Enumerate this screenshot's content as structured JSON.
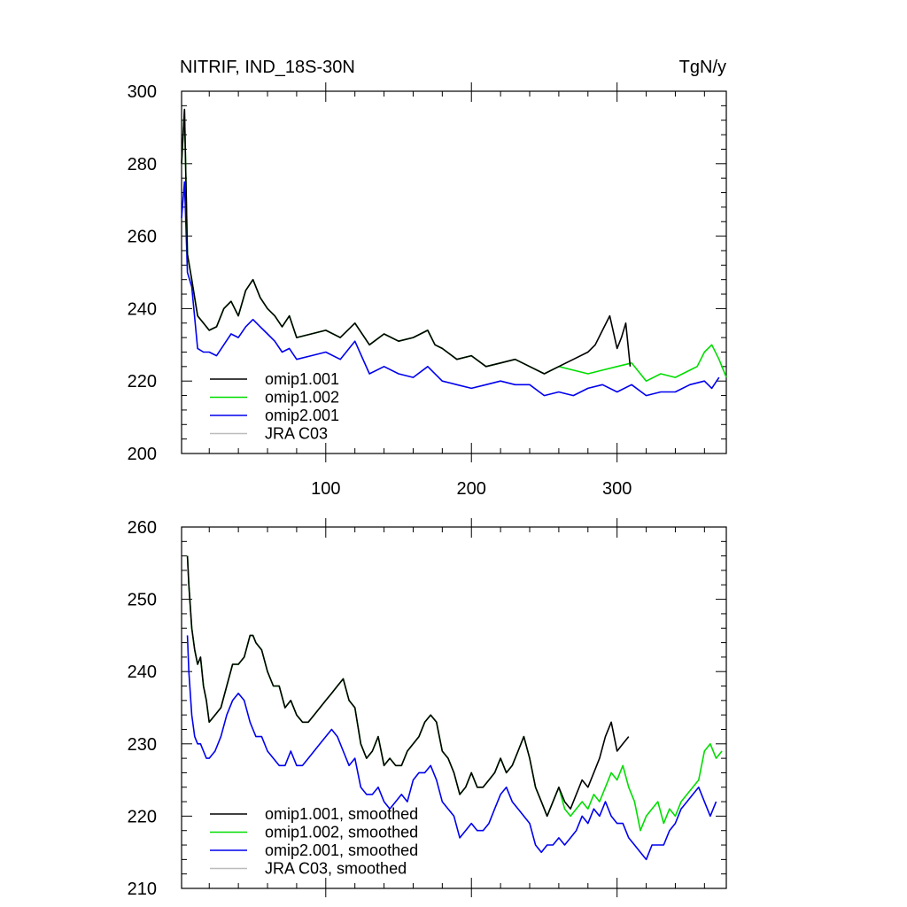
{
  "chart_data": [
    {
      "type": "line",
      "title": "NITRIF, IND_18S-30N",
      "units": "TgN/y",
      "xlim": [
        1,
        375
      ],
      "ylim": [
        200,
        300
      ],
      "x_ticks": [
        100,
        200,
        300
      ],
      "y_ticks": [
        200,
        220,
        240,
        260,
        280,
        300
      ],
      "legend_position": "bottom-left",
      "series": [
        {
          "name": "omip1.001",
          "color": "#000000",
          "x": [
            1,
            3,
            5,
            8,
            12,
            16,
            20,
            25,
            30,
            35,
            40,
            45,
            50,
            55,
            60,
            65,
            70,
            75,
            80,
            90,
            100,
            110,
            120,
            130,
            140,
            150,
            160,
            170,
            175,
            180,
            190,
            200,
            210,
            220,
            230,
            240,
            250,
            260,
            270,
            280,
            285,
            290,
            295,
            300,
            303,
            306,
            309
          ],
          "values": [
            280,
            295,
            255,
            248,
            238,
            236,
            234,
            235,
            240,
            242,
            238,
            245,
            248,
            243,
            240,
            238,
            235,
            238,
            232,
            233,
            234,
            232,
            236,
            230,
            233,
            231,
            232,
            234,
            230,
            229,
            226,
            227,
            224,
            225,
            226,
            224,
            222,
            224,
            226,
            228,
            230,
            234,
            238,
            229,
            232,
            236,
            224
          ]
        },
        {
          "name": "omip1.002",
          "color": "#00dd00",
          "x": [
            1,
            3,
            5,
            8,
            12,
            16,
            20,
            25,
            30,
            35,
            40,
            45,
            50,
            55,
            60,
            65,
            70,
            75,
            80,
            90,
            100,
            110,
            120,
            130,
            140,
            150,
            160,
            170,
            175,
            180,
            190,
            200,
            210,
            220,
            230,
            240,
            250,
            260,
            270,
            280,
            290,
            300,
            310,
            320,
            330,
            340,
            345,
            350,
            355,
            360,
            365,
            370,
            375
          ],
          "values": [
            280,
            295,
            255,
            248,
            238,
            236,
            234,
            235,
            240,
            242,
            238,
            245,
            248,
            243,
            240,
            238,
            235,
            238,
            232,
            233,
            234,
            232,
            236,
            230,
            233,
            231,
            232,
            234,
            230,
            229,
            226,
            227,
            224,
            225,
            226,
            224,
            222,
            224,
            223,
            222,
            223,
            224,
            225,
            220,
            222,
            221,
            222,
            223,
            224,
            228,
            230,
            226,
            221
          ]
        },
        {
          "name": "omip2.001",
          "color": "#0000ee",
          "x": [
            1,
            3,
            5,
            8,
            12,
            16,
            20,
            25,
            30,
            35,
            40,
            45,
            50,
            55,
            60,
            65,
            70,
            75,
            80,
            90,
            100,
            110,
            120,
            130,
            140,
            150,
            160,
            170,
            180,
            190,
            200,
            210,
            220,
            230,
            240,
            250,
            260,
            270,
            280,
            290,
            300,
            310,
            320,
            330,
            340,
            350,
            360,
            365,
            370
          ],
          "values": [
            265,
            275,
            250,
            246,
            229,
            228,
            228,
            227,
            230,
            233,
            232,
            235,
            237,
            235,
            233,
            231,
            228,
            229,
            226,
            227,
            228,
            226,
            231,
            222,
            224,
            222,
            221,
            224,
            220,
            219,
            218,
            219,
            220,
            219,
            219,
            216,
            217,
            216,
            218,
            219,
            217,
            219,
            216,
            217,
            217,
            219,
            220,
            218,
            221
          ]
        },
        {
          "name": "JRA C03",
          "color": "#bbbbbb",
          "x": [],
          "values": []
        }
      ]
    },
    {
      "type": "line",
      "title": "",
      "xlim": [
        1,
        375
      ],
      "ylim": [
        210,
        260
      ],
      "y_ticks": [
        210,
        220,
        230,
        240,
        250,
        260
      ],
      "legend_position": "bottom-left",
      "series": [
        {
          "name": "omip1.001, smoothed",
          "color": "#000000",
          "x": [
            5,
            6,
            8,
            10,
            12,
            14,
            16,
            18,
            20,
            24,
            28,
            32,
            36,
            40,
            44,
            48,
            50,
            52,
            56,
            60,
            64,
            68,
            72,
            76,
            80,
            84,
            88,
            92,
            96,
            100,
            104,
            108,
            112,
            116,
            120,
            124,
            128,
            132,
            136,
            140,
            144,
            148,
            152,
            156,
            160,
            164,
            168,
            172,
            176,
            180,
            184,
            188,
            192,
            196,
            200,
            204,
            208,
            212,
            216,
            220,
            224,
            228,
            232,
            236,
            240,
            244,
            248,
            252,
            256,
            260,
            264,
            268,
            272,
            276,
            280,
            284,
            288,
            292,
            296,
            300,
            304,
            308
          ],
          "values": [
            256,
            252,
            246,
            243,
            241,
            242,
            238,
            236,
            233,
            234,
            235,
            238,
            241,
            241,
            242,
            245,
            245,
            244,
            243,
            240,
            238,
            238,
            235,
            236,
            234,
            233,
            233,
            234,
            235,
            236,
            237,
            238,
            239,
            236,
            235,
            230,
            228,
            229,
            231,
            227,
            228,
            227,
            227,
            229,
            230,
            231,
            233,
            234,
            233,
            229,
            228,
            226,
            223,
            224,
            226,
            224,
            224,
            225,
            226,
            228,
            226,
            227,
            229,
            231,
            228,
            224,
            222,
            220,
            222,
            224,
            222,
            221,
            223,
            225,
            224,
            226,
            228,
            231,
            233,
            229,
            230,
            231
          ]
        },
        {
          "name": "omip1.002, smoothed",
          "color": "#00dd00",
          "x": [
            5,
            6,
            8,
            10,
            12,
            14,
            16,
            18,
            20,
            24,
            28,
            32,
            36,
            40,
            44,
            48,
            50,
            52,
            56,
            60,
            64,
            68,
            72,
            76,
            80,
            84,
            88,
            92,
            96,
            100,
            104,
            108,
            112,
            116,
            120,
            124,
            128,
            132,
            136,
            140,
            144,
            148,
            152,
            156,
            160,
            164,
            168,
            172,
            176,
            180,
            184,
            188,
            192,
            196,
            200,
            204,
            208,
            212,
            216,
            220,
            224,
            228,
            232,
            236,
            240,
            244,
            248,
            252,
            256,
            260,
            264,
            268,
            272,
            276,
            280,
            284,
            288,
            292,
            296,
            300,
            304,
            308,
            312,
            316,
            320,
            324,
            328,
            332,
            336,
            340,
            344,
            348,
            352,
            356,
            360,
            364,
            368,
            372
          ],
          "values": [
            256,
            252,
            246,
            243,
            241,
            242,
            238,
            236,
            233,
            234,
            235,
            238,
            241,
            241,
            242,
            245,
            245,
            244,
            243,
            240,
            238,
            238,
            235,
            236,
            234,
            233,
            233,
            234,
            235,
            236,
            237,
            238,
            239,
            236,
            235,
            230,
            228,
            229,
            231,
            227,
            228,
            227,
            227,
            229,
            230,
            231,
            233,
            234,
            233,
            229,
            228,
            226,
            223,
            224,
            226,
            224,
            224,
            225,
            226,
            228,
            226,
            227,
            229,
            231,
            228,
            224,
            222,
            220,
            222,
            224,
            221,
            220,
            221,
            222,
            221,
            223,
            222,
            224,
            226,
            225,
            227,
            224,
            222,
            218,
            220,
            221,
            222,
            219,
            221,
            220,
            222,
            223,
            224,
            225,
            229,
            230,
            228,
            229
          ]
        },
        {
          "name": "omip2.001, smoothed",
          "color": "#0000ee",
          "x": [
            5,
            6,
            8,
            10,
            12,
            14,
            16,
            18,
            20,
            24,
            28,
            32,
            36,
            40,
            44,
            48,
            50,
            52,
            56,
            60,
            64,
            68,
            72,
            76,
            80,
            84,
            88,
            92,
            96,
            100,
            104,
            108,
            112,
            116,
            120,
            124,
            128,
            132,
            136,
            140,
            144,
            148,
            152,
            156,
            160,
            164,
            168,
            172,
            176,
            180,
            184,
            188,
            192,
            196,
            200,
            204,
            208,
            212,
            216,
            220,
            224,
            228,
            232,
            236,
            240,
            244,
            248,
            252,
            256,
            260,
            264,
            268,
            272,
            276,
            280,
            284,
            288,
            292,
            296,
            300,
            304,
            308,
            312,
            316,
            320,
            324,
            328,
            332,
            336,
            340,
            344,
            348,
            352,
            356,
            360,
            364,
            368
          ],
          "values": [
            245,
            240,
            234,
            231,
            230,
            230,
            229,
            228,
            228,
            229,
            231,
            234,
            236,
            237,
            236,
            233,
            232,
            231,
            231,
            229,
            228,
            227,
            227,
            229,
            227,
            227,
            228,
            229,
            230,
            231,
            232,
            231,
            229,
            227,
            228,
            224,
            223,
            223,
            224,
            222,
            221,
            222,
            223,
            222,
            225,
            226,
            226,
            227,
            225,
            222,
            221,
            220,
            217,
            218,
            219,
            218,
            218,
            219,
            221,
            223,
            224,
            222,
            221,
            220,
            219,
            216,
            215,
            216,
            216,
            217,
            216,
            217,
            218,
            220,
            219,
            221,
            220,
            222,
            220,
            219,
            219,
            217,
            216,
            215,
            214,
            216,
            216,
            216,
            218,
            219,
            221,
            222,
            223,
            224,
            222,
            220,
            222
          ]
        },
        {
          "name": "JRA C03, smoothed",
          "color": "#bbbbbb",
          "x": [],
          "values": []
        }
      ]
    }
  ]
}
